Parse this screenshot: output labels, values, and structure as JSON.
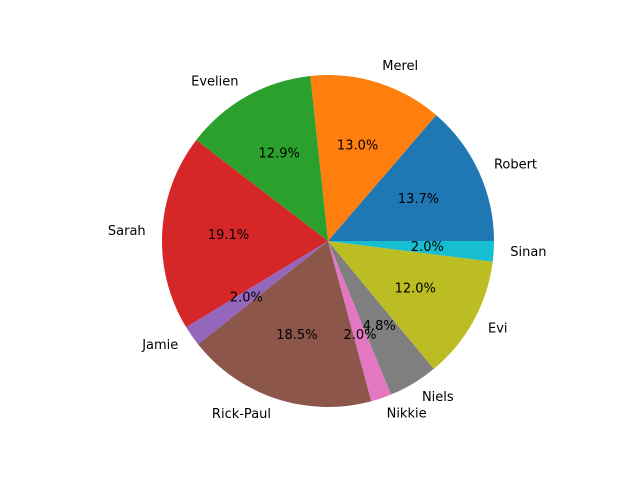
{
  "chart_data": {
    "type": "pie",
    "title": "",
    "categories": [
      "Robert",
      "Merel",
      "Evelien",
      "Sarah",
      "Jamie",
      "Rick-Paul",
      "Nikkie",
      "Niels",
      "Evi",
      "Sinan"
    ],
    "values": [
      13.7,
      13.0,
      12.9,
      19.1,
      2.0,
      18.5,
      2.0,
      4.8,
      12.0,
      2.0
    ],
    "percent_labels": [
      "13.7%",
      "13.0%",
      "12.9%",
      "19.1%",
      "2.0%",
      "18.5%",
      "2.0%",
      "4.8%",
      "12.0%",
      "2.0%"
    ],
    "colors": [
      "#1f77b4",
      "#ff7f0e",
      "#2ca02c",
      "#d62728",
      "#9467bd",
      "#8c564b",
      "#e377c2",
      "#7f7f7f",
      "#bcbd22",
      "#17becf"
    ],
    "start_angle_deg": 0,
    "direction": "counterclockwise",
    "legend": "none"
  }
}
